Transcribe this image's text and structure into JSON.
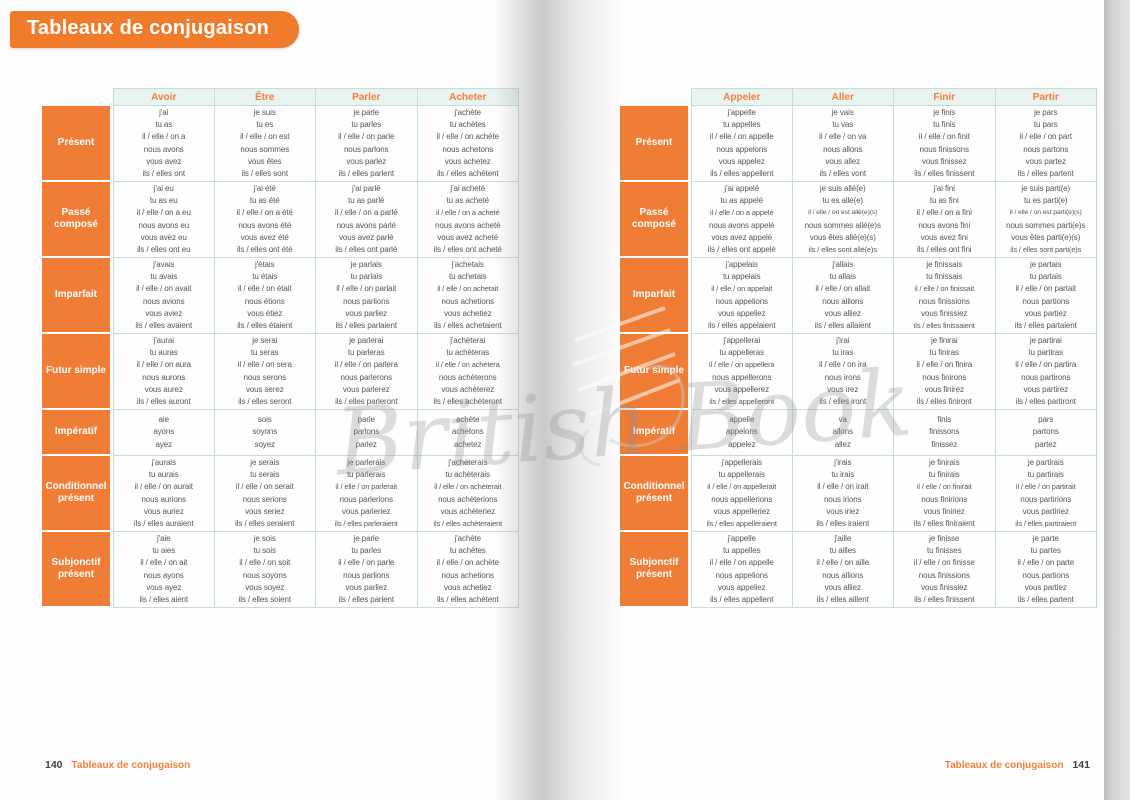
{
  "page": {
    "title": "Tableaux de conjugaison",
    "watermark": "British Book",
    "left_footer": {
      "page_number": "140",
      "label": "Tableaux de conjugaison"
    },
    "right_footer": {
      "page_number": "141",
      "label": "Tableaux de conjugaison"
    }
  },
  "tables": [
    {
      "verbs": [
        "Avoir",
        "Être",
        "Parler",
        "Acheter"
      ],
      "rows": [
        {
          "tense": "Présent",
          "cells": [
            [
              "j'ai",
              "tu as",
              "il / elle / on a",
              "nous avons",
              "vous avez",
              "ils / elles ont"
            ],
            [
              "je suis",
              "tu es",
              "il / elle / on est",
              "nous sommes",
              "vous êtes",
              "ils / elles sont"
            ],
            [
              "je parle",
              "tu parles",
              "il / elle / on parle",
              "nous parlons",
              "vous parlez",
              "ils / elles parlent"
            ],
            [
              "j'achète",
              "tu achètes",
              "il / elle / on achète",
              "nous achetons",
              "vous achetez",
              "ils / elles achètent"
            ]
          ]
        },
        {
          "tense": "Passé composé",
          "cells": [
            [
              "j'ai eu",
              "tu as eu",
              "il / elle / on a eu",
              "nous avons eu",
              "vous avez eu",
              "ils / elles ont eu"
            ],
            [
              "j'ai été",
              "tu as été",
              "il / elle / on a été",
              "nous avons été",
              "vous avez été",
              "ils / elles ont été"
            ],
            [
              "j'ai parlé",
              "tu as parlé",
              "il / elle / on a parlé",
              "nous avons parlé",
              "vous avez parlé",
              "ils / elles ont parlé"
            ],
            [
              "j'ai acheté",
              "tu as acheté",
              "il / elle / on a acheté",
              "nous avons acheté",
              "vous avez acheté",
              "ils / elles ont acheté"
            ]
          ]
        },
        {
          "tense": "Imparfait",
          "cells": [
            [
              "j'avais",
              "tu avais",
              "il / elle / on avait",
              "nous avions",
              "vous aviez",
              "ils / elles avaient"
            ],
            [
              "j'étais",
              "tu étais",
              "il / elle / on était",
              "nous étions",
              "vous étiez",
              "ils / elles étaient"
            ],
            [
              "je parlais",
              "tu parlais",
              "il / elle / on parlait",
              "nous parlions",
              "vous parliez",
              "ils / elles parlaient"
            ],
            [
              "j'achetais",
              "tu achetais",
              "il / elle / on achetait",
              "nous achetions",
              "vous achetiez",
              "ils / elles achetaient"
            ]
          ]
        },
        {
          "tense": "Futur simple",
          "cells": [
            [
              "j'aurai",
              "tu auras",
              "il / elle / on aura",
              "nous aurons",
              "vous aurez",
              "ils / elles auront"
            ],
            [
              "je serai",
              "tu seras",
              "il / elle / on sera",
              "nous serons",
              "vous serez",
              "ils / elles seront"
            ],
            [
              "je parlerai",
              "tu parleras",
              "il / elle / on parlera",
              "nous parlerons",
              "vous parlerez",
              "ils / elles parleront"
            ],
            [
              "j'achèterai",
              "tu achèteras",
              "il / elle / on achètera",
              "nous achèterons",
              "vous achèterez",
              "ils / elles achèteront"
            ]
          ]
        },
        {
          "tense": "Impératif",
          "cells": [
            [
              "aie",
              "ayons",
              "ayez"
            ],
            [
              "sois",
              "soyons",
              "soyez"
            ],
            [
              "parle",
              "parlons",
              "parlez"
            ],
            [
              "achète",
              "achetons",
              "achetez"
            ]
          ]
        },
        {
          "tense": "Conditionnel présent",
          "cells": [
            [
              "j'aurais",
              "tu aurais",
              "il / elle / on aurait",
              "nous aurions",
              "vous auriez",
              "ils / elles auraient"
            ],
            [
              "je serais",
              "tu serais",
              "il / elle / on serait",
              "nous serions",
              "vous seriez",
              "ils / elles seraient"
            ],
            [
              "je parlerais",
              "tu parlerais",
              "il / elle / on parlerait",
              "nous parlerions",
              "vous parleriez",
              "ils / elles parleraient"
            ],
            [
              "j'achèterais",
              "tu achèterais",
              "il / elle / on achèterait",
              "nous achèterions",
              "vous achèteriez",
              "ils / elles achèteraient"
            ]
          ]
        },
        {
          "tense": "Subjonctif présent",
          "cells": [
            [
              "j'aie",
              "tu aies",
              "il / elle / on ait",
              "nous ayons",
              "vous ayez",
              "ils / elles aient"
            ],
            [
              "je sois",
              "tu sois",
              "il / elle / on soit",
              "nous soyons",
              "vous soyez",
              "ils / elles soient"
            ],
            [
              "je parle",
              "tu parles",
              "il / elle / on parle",
              "nous parlions",
              "vous parliez",
              "ils / elles parlent"
            ],
            [
              "j'achète",
              "tu achètes",
              "il / elle / on achète",
              "nous achetions",
              "vous achetiez",
              "ils / elles achètent"
            ]
          ]
        }
      ]
    },
    {
      "verbs": [
        "Appeler",
        "Aller",
        "Finir",
        "Partir"
      ],
      "rows": [
        {
          "tense": "Présent",
          "cells": [
            [
              "j'appelle",
              "tu appelles",
              "il / elle / on appelle",
              "nous appelons",
              "vous appelez",
              "ils / elles appellent"
            ],
            [
              "je vais",
              "tu vas",
              "il / elle / on va",
              "nous allons",
              "vous allez",
              "ils / elles vont"
            ],
            [
              "je finis",
              "tu finis",
              "il / elle / on finit",
              "nous finissons",
              "vous finissez",
              "ils / elles finissent"
            ],
            [
              "je pars",
              "tu pars",
              "il / elle / on part",
              "nous partons",
              "vous partez",
              "ils / elles partent"
            ]
          ]
        },
        {
          "tense": "Passé composé",
          "cells": [
            [
              "j'ai appelé",
              "tu as appelé",
              "il / elle / on a appelé",
              "nous avons appelé",
              "vous avez appelé",
              "ils / elles ont appelé"
            ],
            [
              "je suis allé(e)",
              "tu es allé(e)",
              "il / elle / on est allé(e)(s)",
              "nous sommes allé(e)s",
              "vous êtes allé(e)(s)",
              "ils / elles sont allé(e)s"
            ],
            [
              "j'ai fini",
              "tu as fini",
              "il / elle / on a fini",
              "nous avons fini",
              "vous avez fini",
              "ils / elles ont fini"
            ],
            [
              "je suis parti(e)",
              "tu es parti(e)",
              "il / elle / on est parti(e)(s)",
              "nous sommes parti(e)s",
              "vous êtes parti(e)(s)",
              "ils / elles sont parti(e)s"
            ]
          ]
        },
        {
          "tense": "Imparfait",
          "cells": [
            [
              "j'appelais",
              "tu appelais",
              "il / elle / on appelait",
              "nous appelions",
              "vous appeliez",
              "ils / elles appelaient"
            ],
            [
              "j'allais",
              "tu allais",
              "il / elle / on allait",
              "nous allions",
              "vous alliez",
              "ils / elles allaient"
            ],
            [
              "je finissais",
              "tu finissais",
              "il / elle / on finissait",
              "nous finissions",
              "vous finissiez",
              "ils / elles finissaient"
            ],
            [
              "je partais",
              "tu partais",
              "il / elle / on partait",
              "nous partions",
              "vous partiez",
              "ils / elles partaient"
            ]
          ]
        },
        {
          "tense": "Futur simple",
          "cells": [
            [
              "j'appellerai",
              "tu appelleras",
              "il / elle / on appellera",
              "nous appellerons",
              "vous appellerez",
              "ils / elles appelleront"
            ],
            [
              "j'irai",
              "tu iras",
              "il / elle / on ira",
              "nous irons",
              "vous irez",
              "ils / elles iront"
            ],
            [
              "je finirai",
              "tu finiras",
              "il / elle / on finira",
              "nous finirons",
              "vous finirez",
              "ils / elles finiront"
            ],
            [
              "je partirai",
              "tu partiras",
              "il / elle / on partira",
              "nous partirons",
              "vous partirez",
              "ils / elles partiront"
            ]
          ]
        },
        {
          "tense": "Impératif",
          "cells": [
            [
              "appelle",
              "appelons",
              "appelez"
            ],
            [
              "va",
              "allons",
              "allez"
            ],
            [
              "finis",
              "finissons",
              "finissez"
            ],
            [
              "pars",
              "partons",
              "partez"
            ]
          ]
        },
        {
          "tense": "Conditionnel présent",
          "cells": [
            [
              "j'appellerais",
              "tu appellerais",
              "il / elle / on appellerait",
              "nous appellerions",
              "vous appelleriez",
              "ils / elles appelleraient"
            ],
            [
              "j'irais",
              "tu irais",
              "il / elle / on irait",
              "nous irions",
              "vous iriez",
              "ils / elles iraient"
            ],
            [
              "je finirais",
              "tu finirais",
              "il / elle / on finirait",
              "nous finirions",
              "vous finiriez",
              "ils / elles finiraient"
            ],
            [
              "je partirais",
              "tu partirais",
              "il / elle / on partirait",
              "nous partirions",
              "vous partiriez",
              "ils / elles partiraient"
            ]
          ]
        },
        {
          "tense": "Subjonctif présent",
          "cells": [
            [
              "j'appelle",
              "tu appelles",
              "il / elle / on appelle",
              "nous appelions",
              "vous appeliez",
              "ils / elles appellent"
            ],
            [
              "j'aille",
              "tu ailles",
              "il / elle / on aille",
              "nous allions",
              "vous alliez",
              "ils / elles aillent"
            ],
            [
              "je finisse",
              "tu finisses",
              "il / elle / on finisse",
              "nous finissions",
              "vous finissiez",
              "ils / elles finissent"
            ],
            [
              "je parte",
              "tu partes",
              "il / elle / on parte",
              "nous partions",
              "vous partiez",
              "ils / elles partent"
            ]
          ]
        }
      ]
    }
  ]
}
